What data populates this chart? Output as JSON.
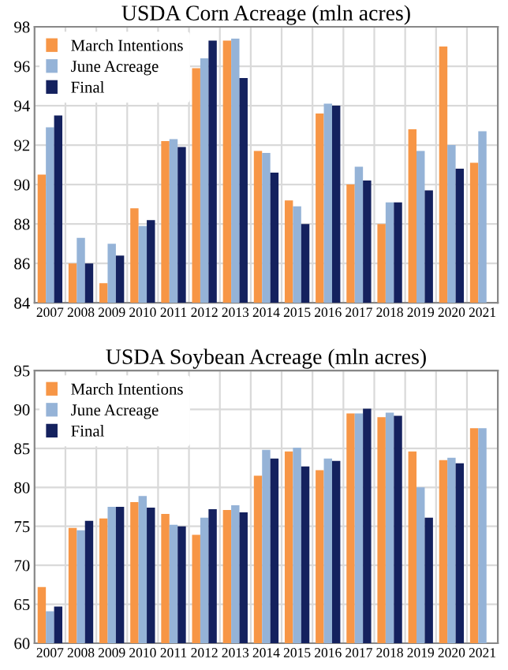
{
  "chart_data": [
    {
      "type": "bar",
      "title": "USDA Corn Acreage (mln acres)",
      "categories": [
        "2007",
        "2008",
        "2009",
        "2010",
        "2011",
        "2012",
        "2013",
        "2014",
        "2015",
        "2016",
        "2017",
        "2018",
        "2019",
        "2020",
        "2021"
      ],
      "series": [
        {
          "name": "March Intentions",
          "color": "#f79646",
          "values": [
            90.5,
            86.0,
            85.0,
            88.8,
            92.2,
            95.9,
            97.3,
            91.7,
            89.2,
            93.6,
            90.0,
            88.0,
            92.8,
            97.0,
            91.1
          ]
        },
        {
          "name": "June Acreage",
          "color": "#95b3d7",
          "values": [
            92.9,
            87.3,
            87.0,
            87.9,
            92.3,
            96.4,
            97.4,
            91.6,
            88.9,
            94.1,
            90.9,
            89.1,
            91.7,
            92.0,
            92.7
          ]
        },
        {
          "name": "Final",
          "color": "#14215e",
          "values": [
            93.5,
            86.0,
            86.4,
            88.2,
            91.9,
            97.3,
            95.4,
            90.6,
            88.0,
            94.0,
            90.2,
            89.1,
            89.7,
            90.8,
            null
          ]
        }
      ],
      "ylim": [
        84,
        98
      ],
      "yticks": [
        84,
        86,
        88,
        90,
        92,
        94,
        96,
        98
      ],
      "grid": true,
      "legend": "top left"
    },
    {
      "type": "bar",
      "title": "USDA Soybean Acreage (mln acres)",
      "categories": [
        "2007",
        "2008",
        "2009",
        "2010",
        "2011",
        "2012",
        "2013",
        "2014",
        "2015",
        "2016",
        "2017",
        "2018",
        "2019",
        "2020",
        "2021"
      ],
      "series": [
        {
          "name": "March Intentions",
          "color": "#f79646",
          "values": [
            67.2,
            74.8,
            76.0,
            78.1,
            76.6,
            73.9,
            77.1,
            81.5,
            84.6,
            82.2,
            89.5,
            89.0,
            84.6,
            83.5,
            87.6
          ]
        },
        {
          "name": "June Acreage",
          "color": "#95b3d7",
          "values": [
            64.1,
            74.5,
            77.5,
            78.9,
            75.2,
            76.1,
            77.7,
            84.8,
            85.1,
            83.7,
            89.5,
            89.6,
            80.0,
            83.8,
            87.6
          ]
        },
        {
          "name": "Final",
          "color": "#14215e",
          "values": [
            64.7,
            75.7,
            77.5,
            77.4,
            75.0,
            77.2,
            76.8,
            83.7,
            82.7,
            83.4,
            90.1,
            89.2,
            76.1,
            83.1,
            null
          ]
        }
      ],
      "ylim": [
        60,
        95
      ],
      "yticks": [
        60,
        65,
        70,
        75,
        80,
        85,
        90,
        95
      ],
      "grid": true,
      "legend": "top left"
    }
  ]
}
